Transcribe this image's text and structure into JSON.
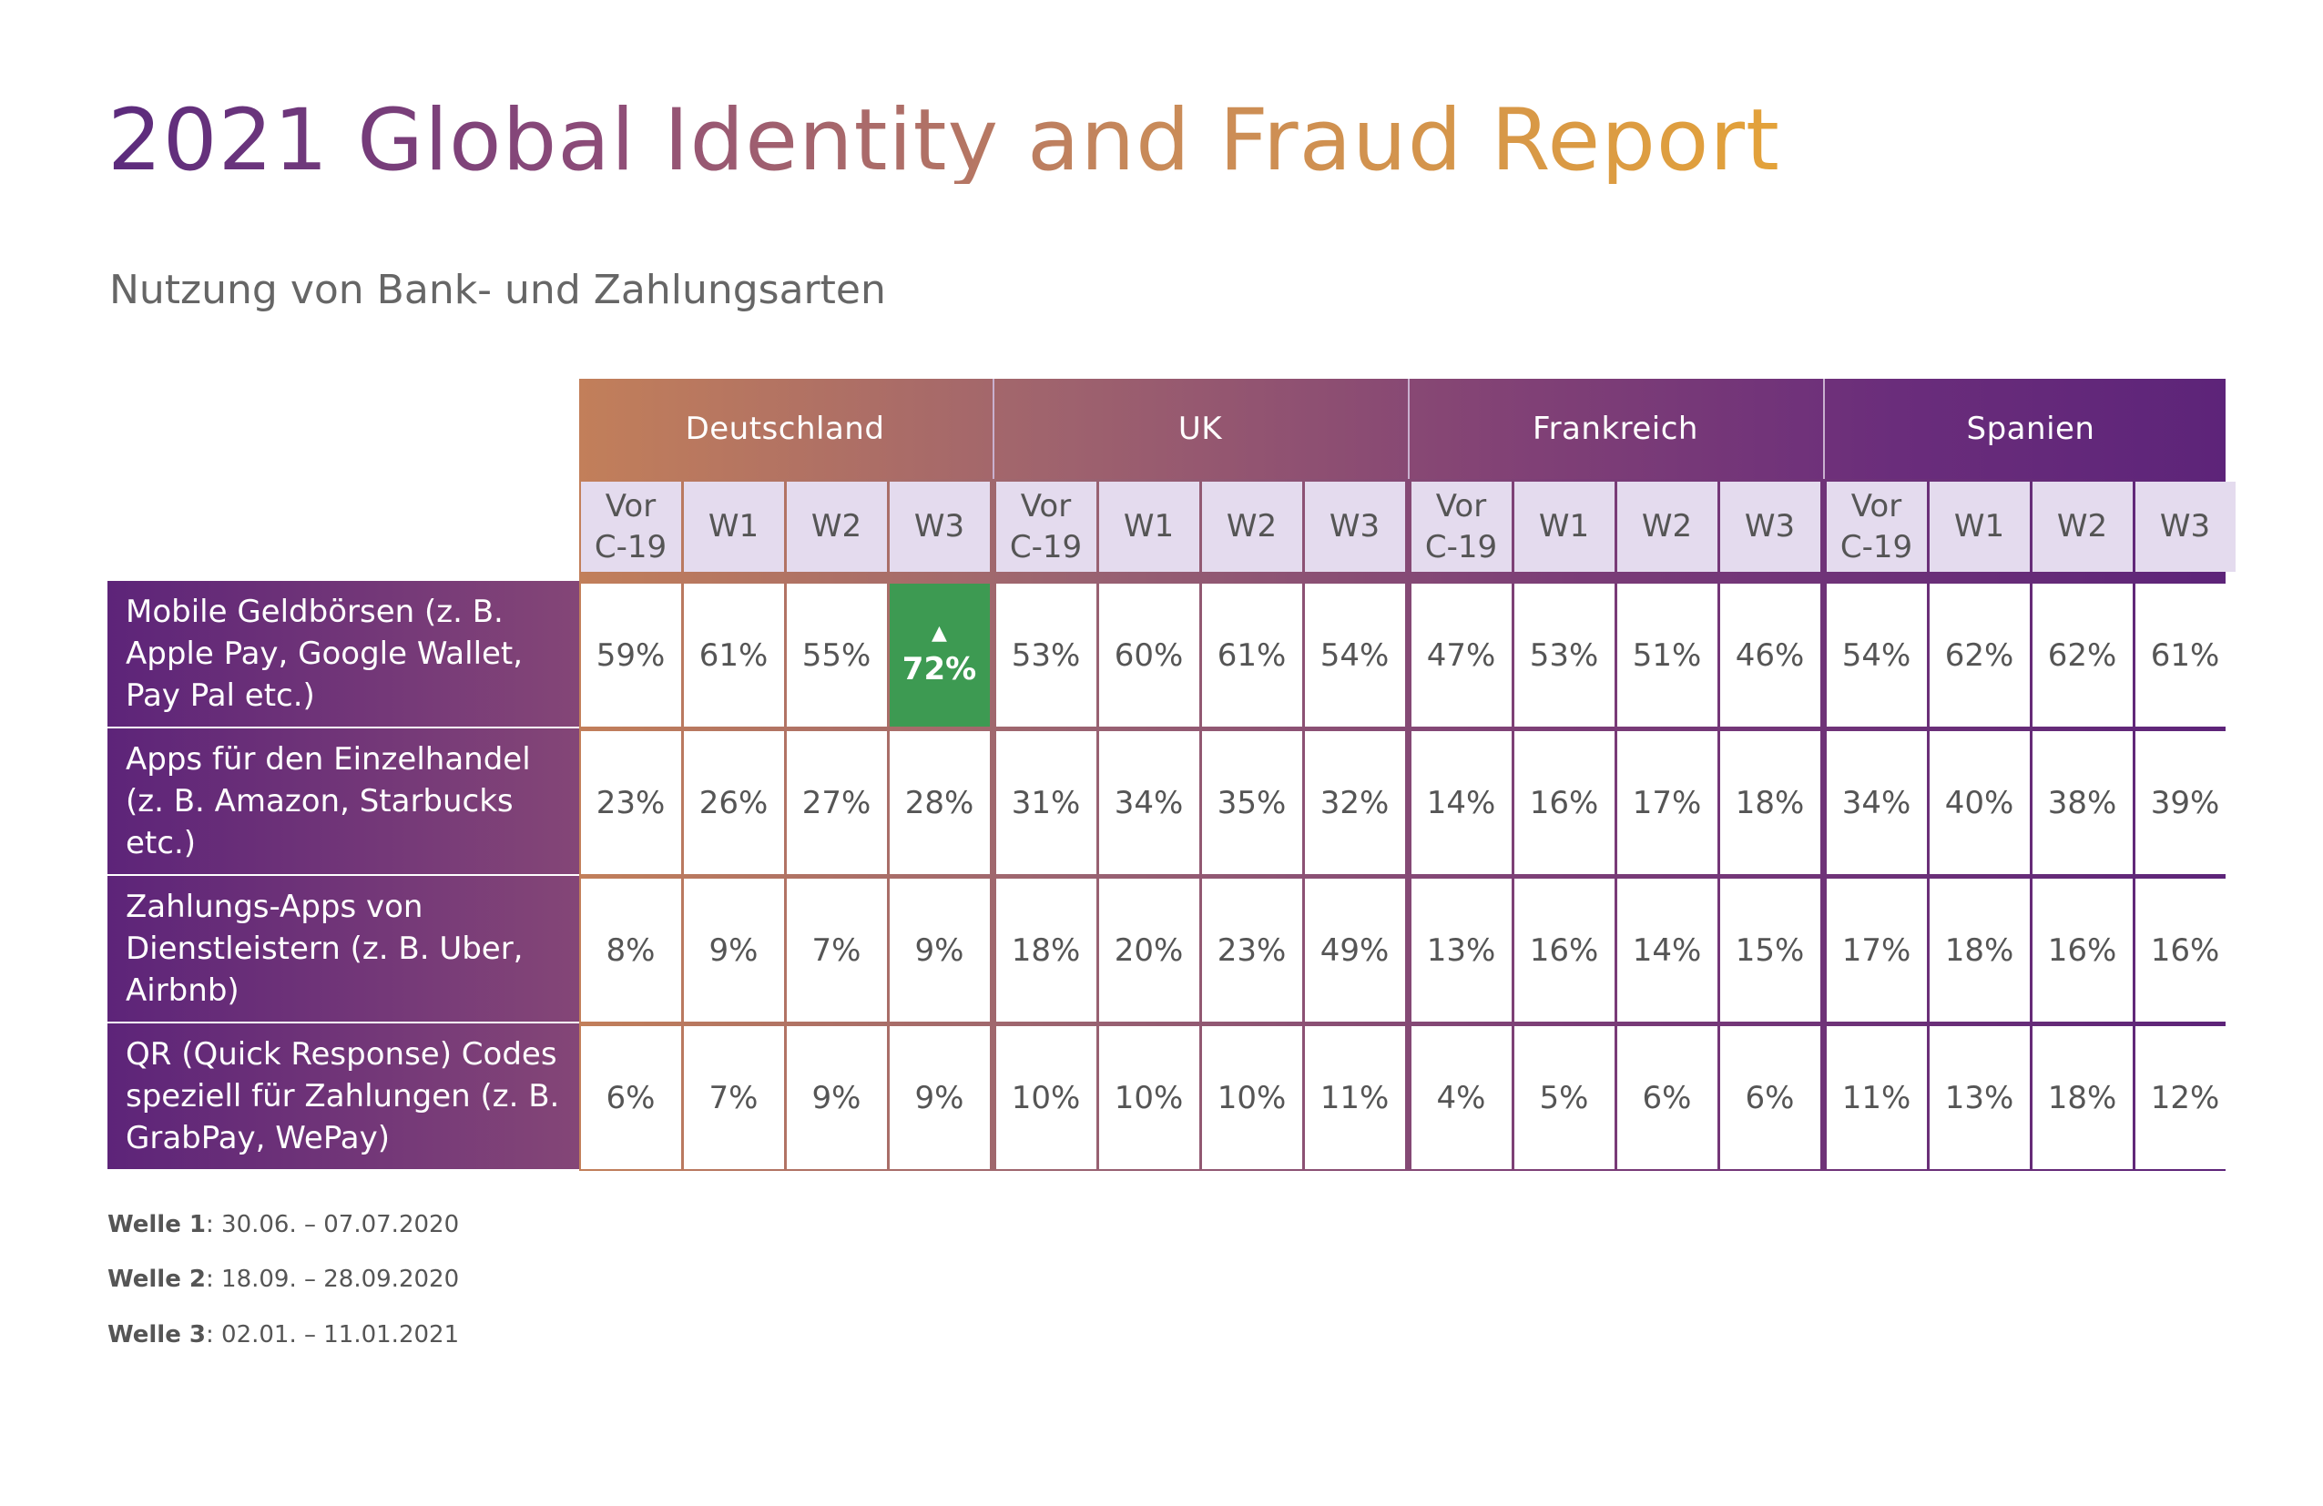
{
  "title": "2021 Global Identity and Fraud Report",
  "chart_data": {
    "type": "table",
    "subtitle": "Nutzung von Bank- und Zahlungsarten",
    "countries": [
      "Deutschland",
      "UK",
      "Frankreich",
      "Spanien"
    ],
    "waves": [
      "Vor C-19",
      "W1",
      "W2",
      "W3"
    ],
    "rows": [
      {
        "label": "Mobile Geldbörsen (z. B. Apple Pay, Google Wallet, Pay Pal etc.)",
        "values": [
          "59%",
          "61%",
          "55%",
          "72%",
          "53%",
          "60%",
          "61%",
          "54%",
          "47%",
          "53%",
          "51%",
          "46%",
          "54%",
          "62%",
          "62%",
          "61%"
        ],
        "highlight_index": 3
      },
      {
        "label": "Apps für den Einzelhandel (z. B. Amazon, Starbucks etc.)",
        "values": [
          "23%",
          "26%",
          "27%",
          "28%",
          "31%",
          "34%",
          "35%",
          "32%",
          "14%",
          "16%",
          "17%",
          "18%",
          "34%",
          "40%",
          "38%",
          "39%"
        ]
      },
      {
        "label": "Zahlungs-Apps von Dienstleistern (z. B. Uber, Airbnb)",
        "values": [
          "8%",
          "9%",
          "7%",
          "9%",
          "18%",
          "20%",
          "23%",
          "49%",
          "13%",
          "16%",
          "14%",
          "15%",
          "17%",
          "18%",
          "16%",
          "16%"
        ]
      },
      {
        "label": "QR (Quick Response) Codes speziell für Zahlungen (z. B. GrabPay, WePay)",
        "values": [
          "6%",
          "7%",
          "9%",
          "9%",
          "10%",
          "10%",
          "10%",
          "11%",
          "4%",
          "5%",
          "6%",
          "6%",
          "11%",
          "13%",
          "18%",
          "12%"
        ]
      }
    ],
    "highlight_color": "#3d9a52",
    "highlight_marker": "arrow-up"
  },
  "notes": [
    {
      "label": "Welle 1",
      "text": ": 30.06. – 07.07.2020"
    },
    {
      "label": "Welle 2",
      "text": ": 18.09. – 28.09.2020"
    },
    {
      "label": "Welle 3",
      "text": ": 02.01. – 11.01.2021"
    }
  ],
  "colors": {
    "purple": "#5d2479",
    "orange": "#e3a23a",
    "wave_background": "#e4dbee"
  }
}
